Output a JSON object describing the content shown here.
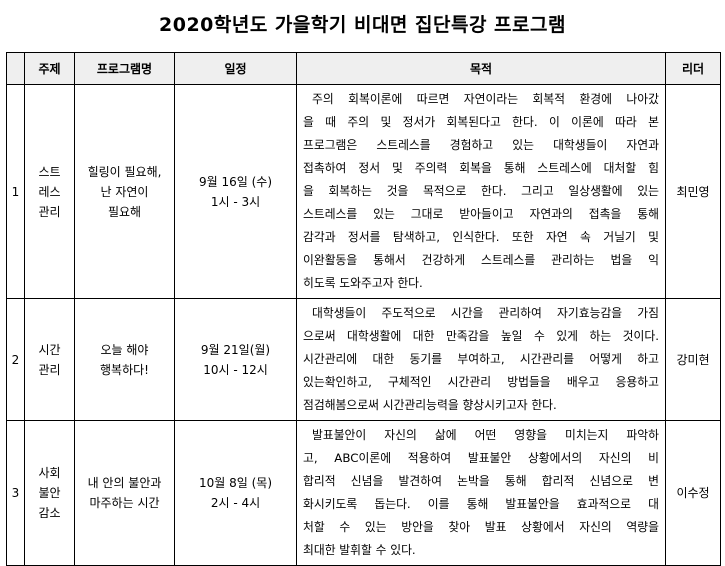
{
  "title": "2020학년도 가을학기 비대면 집단특강 프로그램",
  "headers": [
    "",
    "주제",
    "프로그램명",
    "일정",
    "목적",
    "리더"
  ],
  "rows": [
    {
      "no": "1",
      "topic": [
        "스트",
        "레스",
        "관리"
      ],
      "program": [
        "힐링이 필요해,",
        "난 자연이",
        "필요해"
      ],
      "schedule": [
        "9월 16일 (수)",
        "1시 - 3시"
      ],
      "purpose": [
        "주의 회복이론에 따르면 자연이라는 회복적 환경에 나아갔",
        "을 때 주의 및 정서가 회복된다고 한다. 이 이론에 따라 본",
        "프로그램은 스트레스를 경험하고 있는 대학생들이 자연과",
        "접촉하여 정서 및 주의력 회복을 통해 스트레스에 대처할 힘",
        "을 회복하는 것을 목적으로 한다. 그리고 일상생활에 있는",
        "스트레스를 있는 그대로 받아들이고 자연과의 접촉을 통해",
        "감각과 정서를 탐색하고, 인식한다. 또한 자연 속 거닐기 및",
        "이완활동을 통해서 건강하게 스트레스를 관리하는 법을 익",
        "히도록 도와주고자 한다."
      ],
      "leader": "최민영"
    },
    {
      "no": "2",
      "topic": [
        "시간",
        "관리"
      ],
      "program": [
        "오늘 해야",
        "행복하다!"
      ],
      "schedule": [
        "9월 21일(월)",
        "10시 - 12시"
      ],
      "purpose": [
        "대학생들이 주도적으로 시간을 관리하여 자기효능감을 가짐",
        "으로써 대학생활에 대한 만족감을 높일 수 있게 하는 것이다.",
        "시간관리에 대한 동기를 부여하고, 시간관리를 어떻게 하고",
        "있는확인하고, 구체적인 시간관리 방법들을 배우고 응용하고",
        "점검해봄으로써 시간관리능력을 향상시키고자 한다."
      ],
      "leader": "강미현"
    },
    {
      "no": "3",
      "topic": [
        "사회",
        "불안",
        "감소"
      ],
      "program": [
        "내 안의 불안과",
        "마주하는 시간"
      ],
      "schedule": [
        "10월 8일 (목)",
        "2시 - 4시"
      ],
      "purpose": [
        "발표불안이 자신의 삶에 어떤 영향을 미치는지 파악하",
        "고, ABC이론에 적용하여 발표불안 상황에서의 자신의 비",
        "합리적 신념을 발견하여 논박을 통해 합리적 신념으로 변",
        "화시키도록 돕는다. 이를 통해 발표불안을 효과적으로 대",
        "처할 수 있는 방안을 찾아 발표 상황에서 자신의 역량을",
        "최대한 발휘할 수 있다."
      ],
      "leader": "이수정"
    }
  ]
}
